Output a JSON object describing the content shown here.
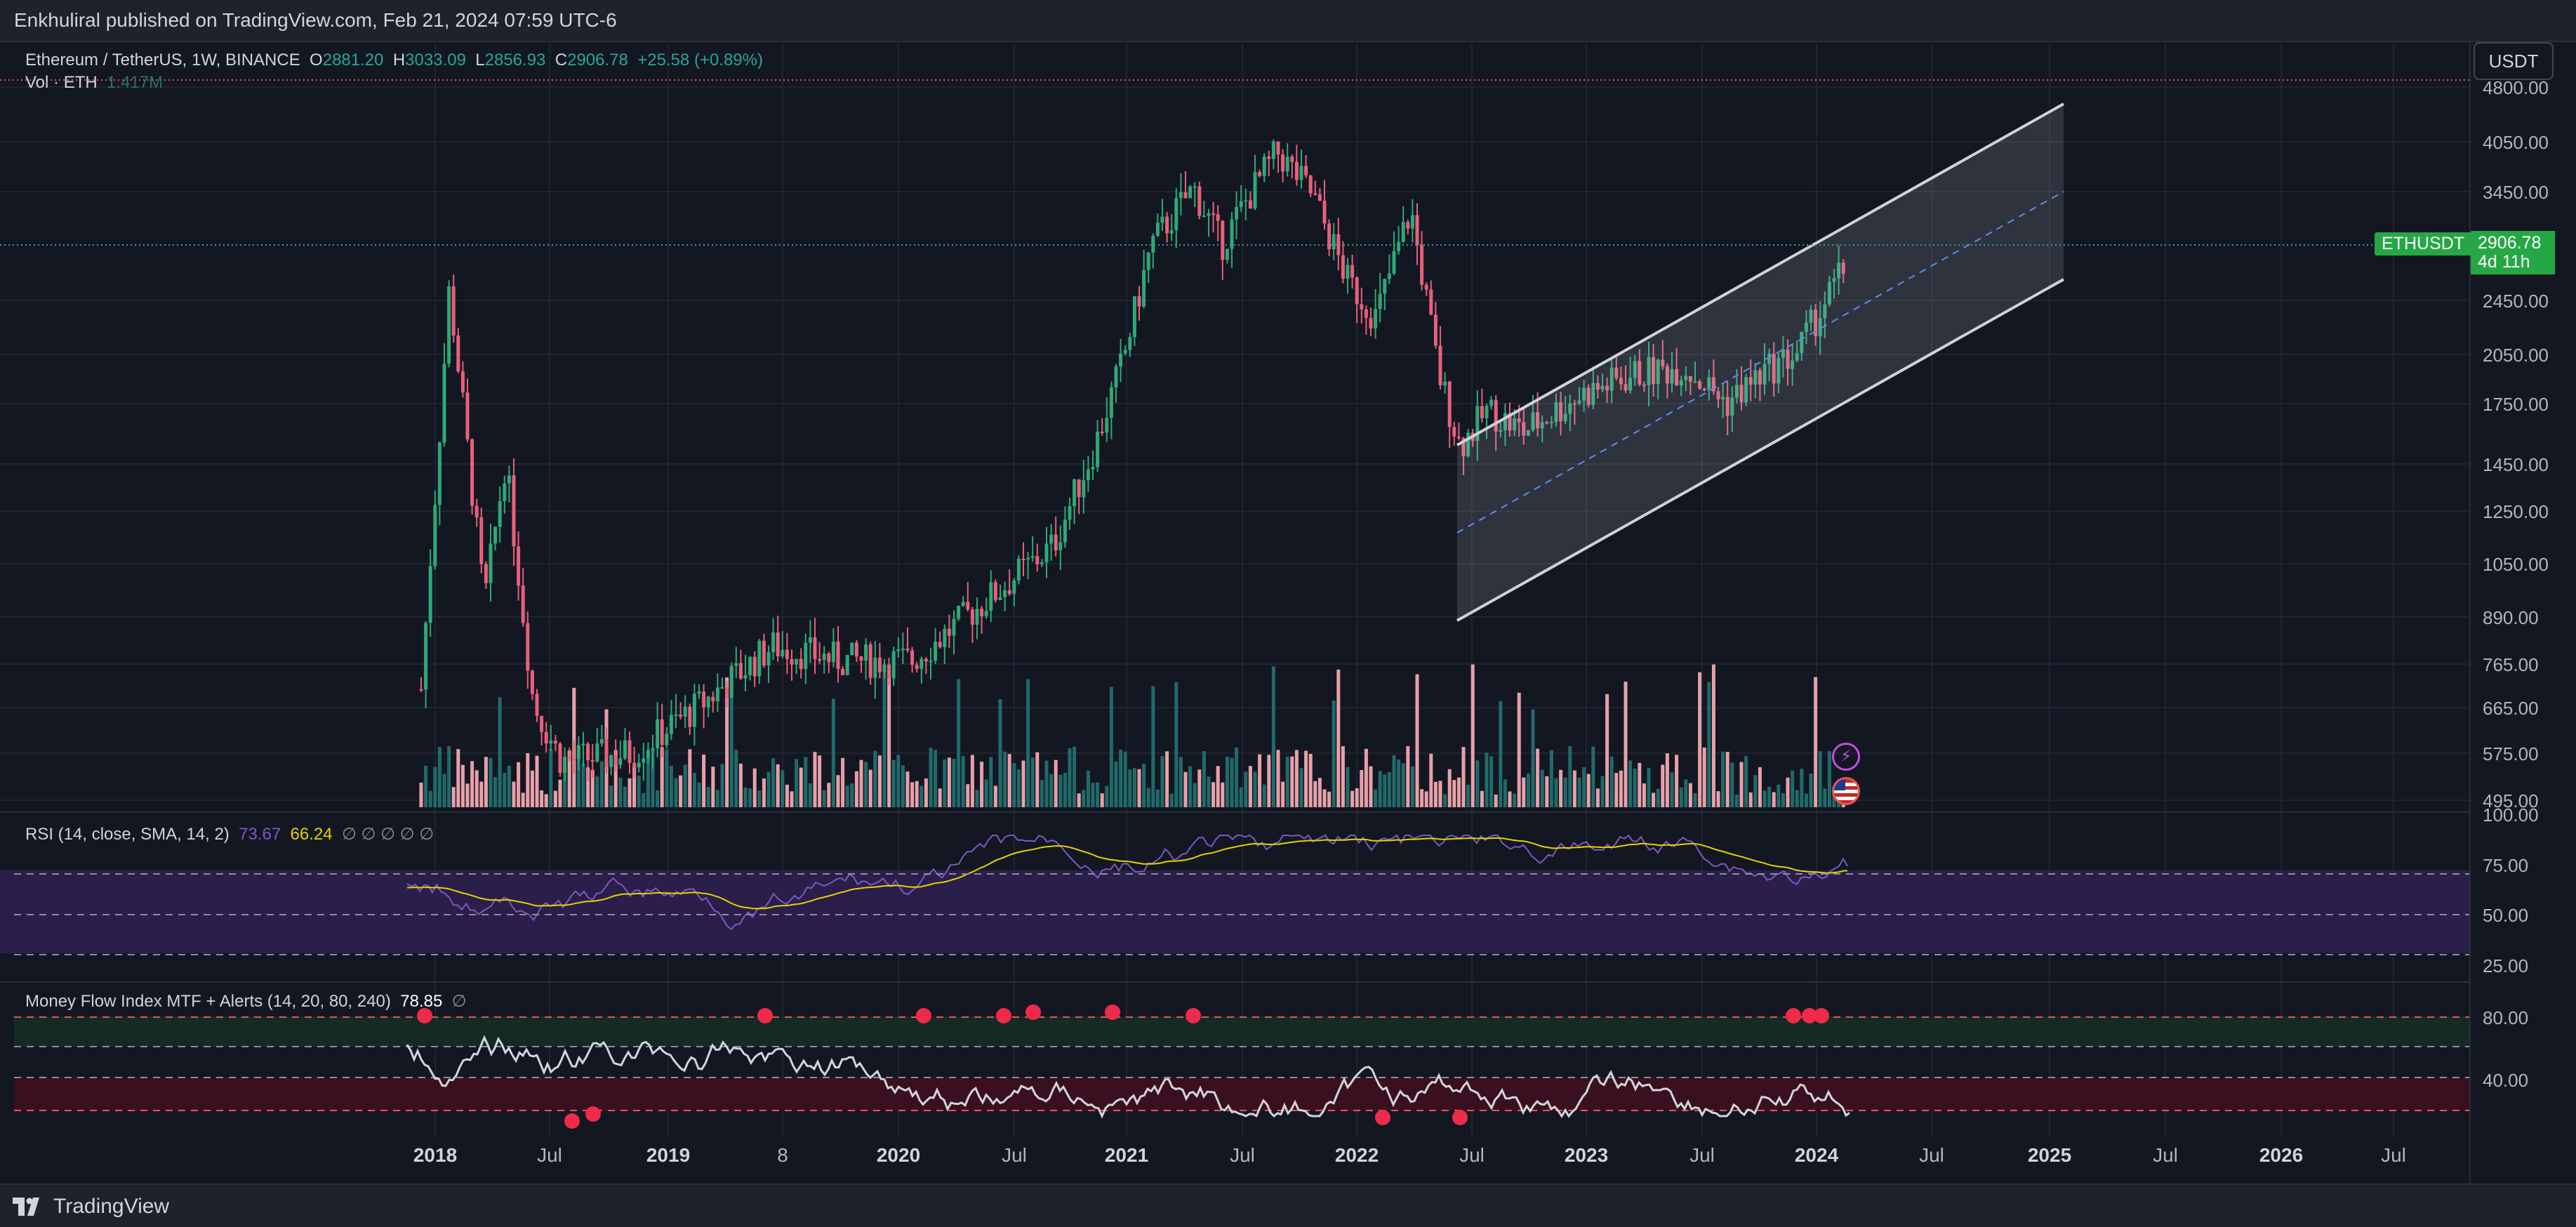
{
  "header": {
    "published": "Enkhuliral published on TradingView.com, Feb 21, 2024 07:59 UTC-6"
  },
  "main_legend": {
    "symbol": "Ethereum / TetherUS, 1W, BINANCE",
    "open_label": "O",
    "open": "2881.20",
    "high_label": "H",
    "high": "3033.09",
    "low_label": "L",
    "low": "2856.93",
    "close_label": "C",
    "close": "2906.78",
    "change": "+25.58 (+0.89%)",
    "vol_label": "Vol · ETH",
    "vol_value": "1.417M"
  },
  "currency_button": "USDT",
  "price_tag": {
    "symbol": "ETHUSDT",
    "price": "2906.78",
    "countdown": "4d 11h"
  },
  "price_axis": [
    "4800.00",
    "4050.00",
    "3450.00",
    "2450.00",
    "2050.00",
    "1750.00",
    "1450.00",
    "1250.00",
    "1050.00",
    "890.00",
    "765.00",
    "665.00",
    "575.00",
    "495.00"
  ],
  "rsi": {
    "label": "RSI (14, close, SMA, 14, 2)",
    "rsi_value": "73.67",
    "sma_value": "66.24",
    "na": "∅ ∅ ∅ ∅ ∅",
    "axis": [
      "100.00",
      "75.00",
      "50.00",
      "25.00"
    ]
  },
  "mfi": {
    "label": "Money Flow Index MTF + Alerts (14, 20, 80, 240)",
    "value": "78.85",
    "na": "∅",
    "axis": [
      "80.00",
      "40.00"
    ]
  },
  "time_axis": [
    {
      "t": "2018",
      "year": true
    },
    {
      "t": "Jul",
      "year": false
    },
    {
      "t": "2019",
      "year": true
    },
    {
      "t": "8",
      "year": false
    },
    {
      "t": "2020",
      "year": true
    },
    {
      "t": "Jul",
      "year": false
    },
    {
      "t": "2021",
      "year": true
    },
    {
      "t": "Jul",
      "year": false
    },
    {
      "t": "2022",
      "year": true
    },
    {
      "t": "Jul",
      "year": false
    },
    {
      "t": "2023",
      "year": true
    },
    {
      "t": "Jul",
      "year": false
    },
    {
      "t": "2024",
      "year": true
    },
    {
      "t": "Jul",
      "year": false
    },
    {
      "t": "2025",
      "year": true
    },
    {
      "t": "Jul",
      "year": false
    },
    {
      "t": "2026",
      "year": true
    },
    {
      "t": "Jul",
      "year": false
    }
  ],
  "footer": {
    "brand": "TradingView"
  },
  "colors": {
    "up": "#26a69a",
    "down": "#ef5350",
    "bg": "#131722",
    "rsi": "#7e57c2",
    "sma": "#e6d200",
    "mfi": "#d1d4dc",
    "channel": "#cfd2da"
  },
  "icons": {
    "flash": "lightning-icon",
    "flag": "us-flag-icon",
    "logo": "tradingview-logo-icon"
  }
}
